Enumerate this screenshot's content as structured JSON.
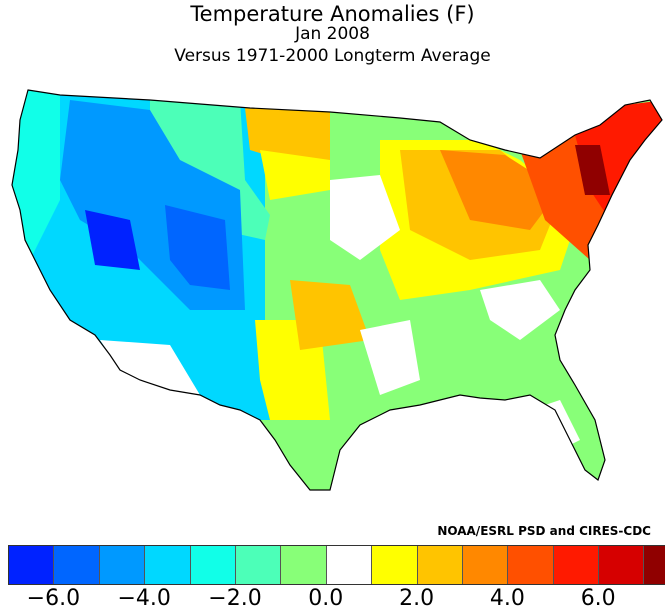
{
  "title": {
    "line1": "Temperature Anomalies (F)",
    "line2": "Jan 2008",
    "line3": "Versus 1971-2000 Longterm Average"
  },
  "credit": "NOAA/ESRL PSD and CIRES-CDC",
  "legend": {
    "colors": [
      "#0022ff",
      "#0066ff",
      "#0099ff",
      "#00d8ff",
      "#11ffe8",
      "#4cffb8",
      "#88ff78",
      "#ffffff",
      "#ffff00",
      "#ffc400",
      "#ff8800",
      "#ff5000",
      "#ff1a00",
      "#d60000",
      "#900000"
    ],
    "ticks": [
      {
        "value": -6.0,
        "label": "−6.0"
      },
      {
        "value": -4.0,
        "label": "−4.0"
      },
      {
        "value": -2.0,
        "label": "−2.0"
      },
      {
        "value": 0.0,
        "label": "0.0"
      },
      {
        "value": 2.0,
        "label": "2.0"
      },
      {
        "value": 4.0,
        "label": "4.0"
      },
      {
        "value": 6.0,
        "label": "6.0"
      }
    ]
  }
}
